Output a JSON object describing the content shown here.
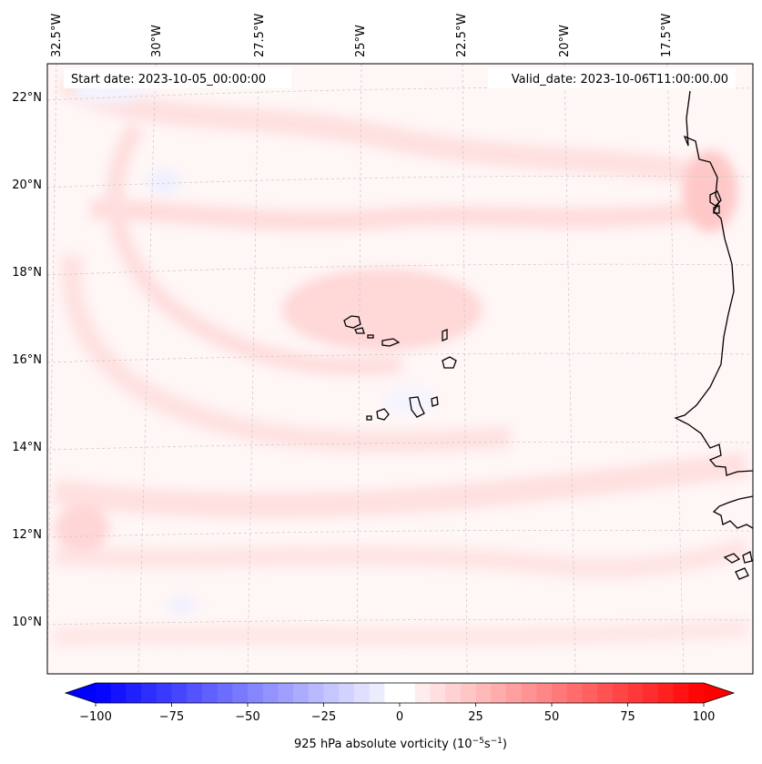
{
  "map": {
    "start_label": "Start date: 2023-10-05_00:00:00",
    "valid_label": "Valid_date: 2023-10-06T11:00:00.00",
    "lon_labels": [
      "32.5°W",
      "30°W",
      "27.5°W",
      "25°W",
      "22.5°W",
      "20°W",
      "17.5°W"
    ],
    "lat_labels": [
      "22°N",
      "20°N",
      "18°N",
      "16°N",
      "14°N",
      "12°N",
      "10°N"
    ],
    "coastline_color": "#000000",
    "gridline_color": "#c8c8c8"
  },
  "colorbar": {
    "label": "925 hPa absolute vorticity (10",
    "label_exp1": "−5",
    "label_mid": "s",
    "label_exp2": "−1",
    "label_end": ")",
    "ticks": [
      "−100",
      "−75",
      "−50",
      "−25",
      "0",
      "25",
      "50",
      "75",
      "100"
    ],
    "min": -100,
    "max": 100,
    "step": 5,
    "colors": {
      "negative_end": "#0000ff",
      "center": "#ffffff",
      "positive_end": "#ff0000"
    }
  }
}
